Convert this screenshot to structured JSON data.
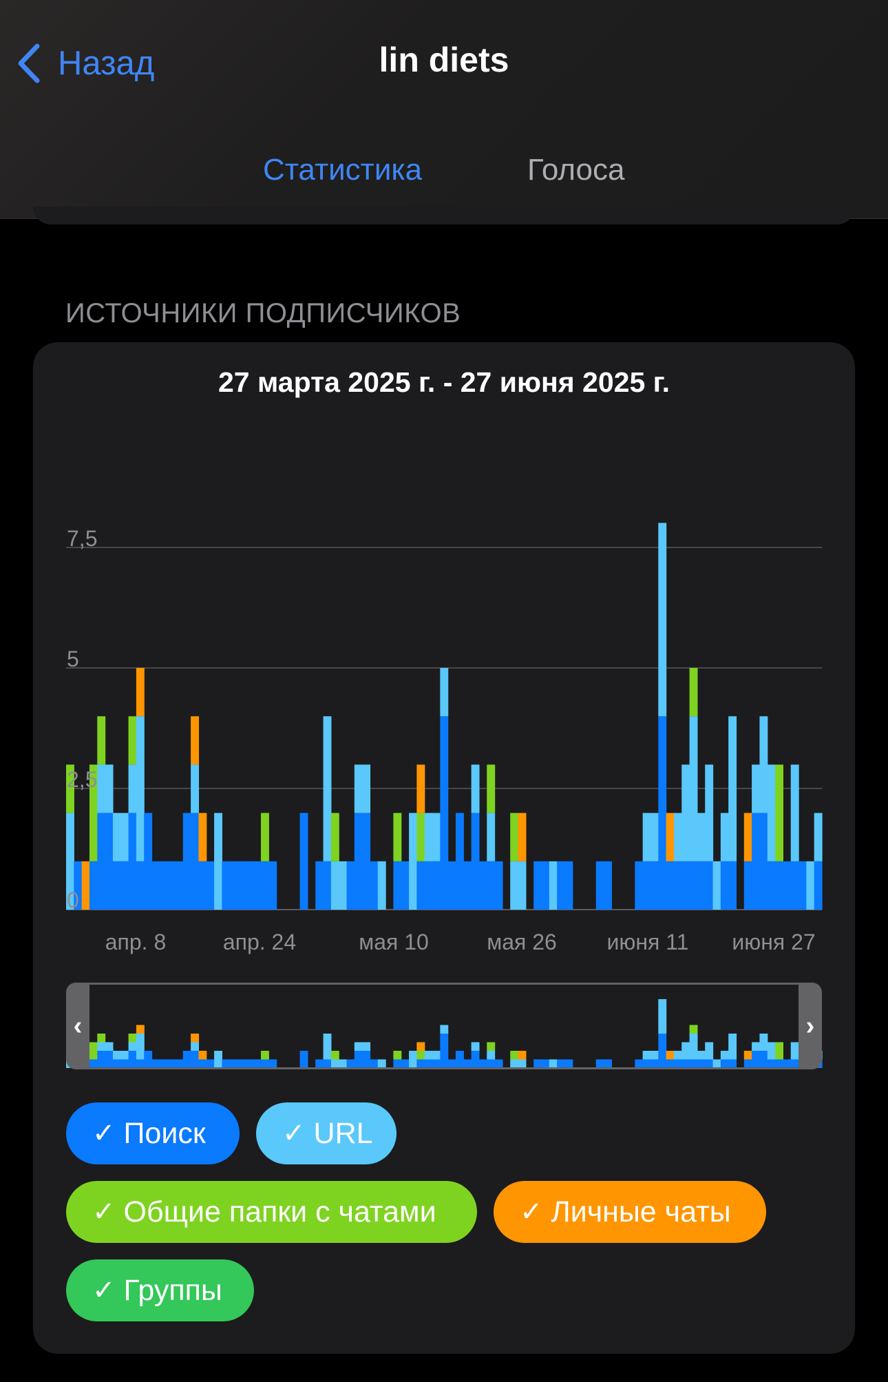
{
  "header": {
    "back_label": "Назад",
    "title": "lin diets",
    "tabs": [
      {
        "label": "Статистика",
        "active": true
      },
      {
        "label": "Голоса",
        "active": false
      }
    ]
  },
  "section": {
    "title": "ИСТОЧНИКИ ПОДПИСЧИКОВ",
    "date_range": "27 марта 2025 г. - 27 июня 2025 г."
  },
  "colors": {
    "accent": "#3f86f5",
    "search": "#0a7aff",
    "url": "#5ac8fa",
    "shared_folders": "#7ed321",
    "private_chats": "#ff9500",
    "groups": "#34c759"
  },
  "filters": [
    {
      "label": "Поиск",
      "color": "#0a7aff",
      "checked": true
    },
    {
      "label": "URL",
      "color": "#5ac8fa",
      "checked": true
    },
    {
      "label": "Общие папки с чатами",
      "color": "#7ed321",
      "checked": true
    },
    {
      "label": "Личные чаты",
      "color": "#ff9500",
      "checked": true
    },
    {
      "label": "Группы",
      "color": "#34c759",
      "checked": true
    }
  ],
  "chart_data": {
    "type": "bar",
    "stacked": true,
    "title": "27 марта 2025 г. - 27 июня 2025 г.",
    "x_tick_labels": [
      "апр. 8",
      "апр. 24",
      "мая 10",
      "мая 26",
      "июня 11",
      "июня 27"
    ],
    "y_tick_labels": [
      "0",
      "2,5",
      "5",
      "7,5"
    ],
    "ylim": [
      0,
      7.5
    ],
    "grid": true,
    "series": [
      {
        "name": "Поиск",
        "color": "#0a7aff",
        "values": [
          0,
          1,
          0,
          1,
          2,
          2,
          1,
          1,
          2,
          1,
          2,
          1,
          1,
          1,
          1,
          2,
          2,
          1,
          1,
          0,
          1,
          1,
          1,
          1,
          1,
          1,
          1,
          0,
          0,
          0,
          2,
          0,
          1,
          1,
          0,
          0,
          1,
          2,
          2,
          1,
          0,
          0,
          1,
          1,
          0,
          1,
          1,
          1,
          4,
          1,
          2,
          1,
          2,
          1,
          1,
          1,
          0,
          0,
          0,
          0,
          1,
          1,
          0,
          1,
          1,
          0,
          0,
          0,
          1,
          1,
          0,
          0,
          0,
          1,
          1,
          1,
          4,
          1,
          1,
          1,
          1,
          1,
          1,
          0,
          1,
          1,
          0,
          1,
          2,
          2,
          1,
          1,
          1,
          1,
          1,
          0,
          1
        ]
      },
      {
        "name": "URL",
        "color": "#5ac8fa",
        "values": [
          2,
          0,
          0,
          0,
          1,
          1,
          1,
          1,
          1,
          3,
          0,
          0,
          0,
          0,
          0,
          0,
          1,
          0,
          0,
          2,
          0,
          0,
          0,
          0,
          0,
          0,
          0,
          0,
          0,
          0,
          0,
          0,
          0,
          3,
          1,
          1,
          0,
          1,
          1,
          0,
          1,
          0,
          0,
          0,
          2,
          0,
          1,
          1,
          1,
          0,
          0,
          0,
          1,
          0,
          1,
          0,
          0,
          1,
          1,
          0,
          0,
          0,
          1,
          0,
          0,
          0,
          0,
          0,
          0,
          0,
          0,
          0,
          0,
          0,
          1,
          1,
          4,
          0,
          1,
          2,
          3,
          1,
          2,
          1,
          1,
          3,
          0,
          0,
          1,
          2,
          2,
          0,
          0,
          2,
          0,
          1,
          1
        ]
      },
      {
        "name": "Общие папки с чатами",
        "color": "#7ed321",
        "values": [
          1,
          0,
          0,
          2,
          1,
          0,
          0,
          0,
          1,
          0,
          0,
          0,
          0,
          0,
          0,
          0,
          0,
          0,
          0,
          0,
          0,
          0,
          0,
          0,
          0,
          1,
          0,
          0,
          0,
          0,
          0,
          0,
          0,
          0,
          1,
          0,
          0,
          0,
          0,
          0,
          0,
          0,
          1,
          0,
          0,
          1,
          0,
          0,
          0,
          0,
          0,
          0,
          0,
          0,
          1,
          0,
          0,
          1,
          0,
          0,
          0,
          0,
          0,
          0,
          0,
          0,
          0,
          0,
          0,
          0,
          0,
          0,
          0,
          0,
          0,
          0,
          0,
          0,
          0,
          0,
          1,
          0,
          0,
          0,
          0,
          0,
          0,
          0,
          0,
          0,
          0,
          2,
          0,
          0,
          0,
          0,
          0
        ]
      },
      {
        "name": "Личные чаты",
        "color": "#ff9500",
        "values": [
          0,
          0,
          1,
          0,
          0,
          0,
          0,
          0,
          0,
          1,
          0,
          0,
          0,
          0,
          0,
          0,
          1,
          1,
          0,
          0,
          0,
          0,
          0,
          0,
          0,
          0,
          0,
          0,
          0,
          0,
          0,
          0,
          0,
          0,
          0,
          0,
          0,
          0,
          0,
          0,
          0,
          0,
          0,
          0,
          0,
          1,
          0,
          0,
          0,
          0,
          0,
          0,
          0,
          0,
          0,
          0,
          0,
          0,
          1,
          0,
          0,
          0,
          0,
          0,
          0,
          0,
          0,
          0,
          0,
          0,
          0,
          0,
          0,
          0,
          0,
          0,
          0,
          1,
          0,
          0,
          0,
          0,
          0,
          0,
          0,
          0,
          0,
          1,
          0,
          0,
          0,
          0,
          0,
          0,
          0,
          0,
          0
        ]
      },
      {
        "name": "Группы",
        "color": "#34c759",
        "values": [
          0,
          0,
          0,
          0,
          0,
          0,
          0,
          0,
          0,
          0,
          0,
          0,
          0,
          0,
          0,
          0,
          0,
          0,
          0,
          0,
          0,
          0,
          0,
          0,
          0,
          0,
          0,
          0,
          0,
          0,
          0,
          0,
          0,
          0,
          0,
          0,
          0,
          0,
          0,
          0,
          0,
          0,
          0,
          0,
          0,
          0,
          0,
          0,
          0,
          0,
          0,
          0,
          0,
          0,
          0,
          0,
          0,
          0,
          0,
          0,
          0,
          0,
          0,
          0,
          0,
          0,
          0,
          0,
          0,
          0,
          0,
          0,
          0,
          0,
          0,
          0,
          0,
          0,
          0,
          0,
          0,
          0,
          0,
          0,
          0,
          0,
          0,
          0,
          0,
          0,
          0,
          0,
          0,
          0,
          0,
          0,
          0
        ]
      }
    ]
  }
}
